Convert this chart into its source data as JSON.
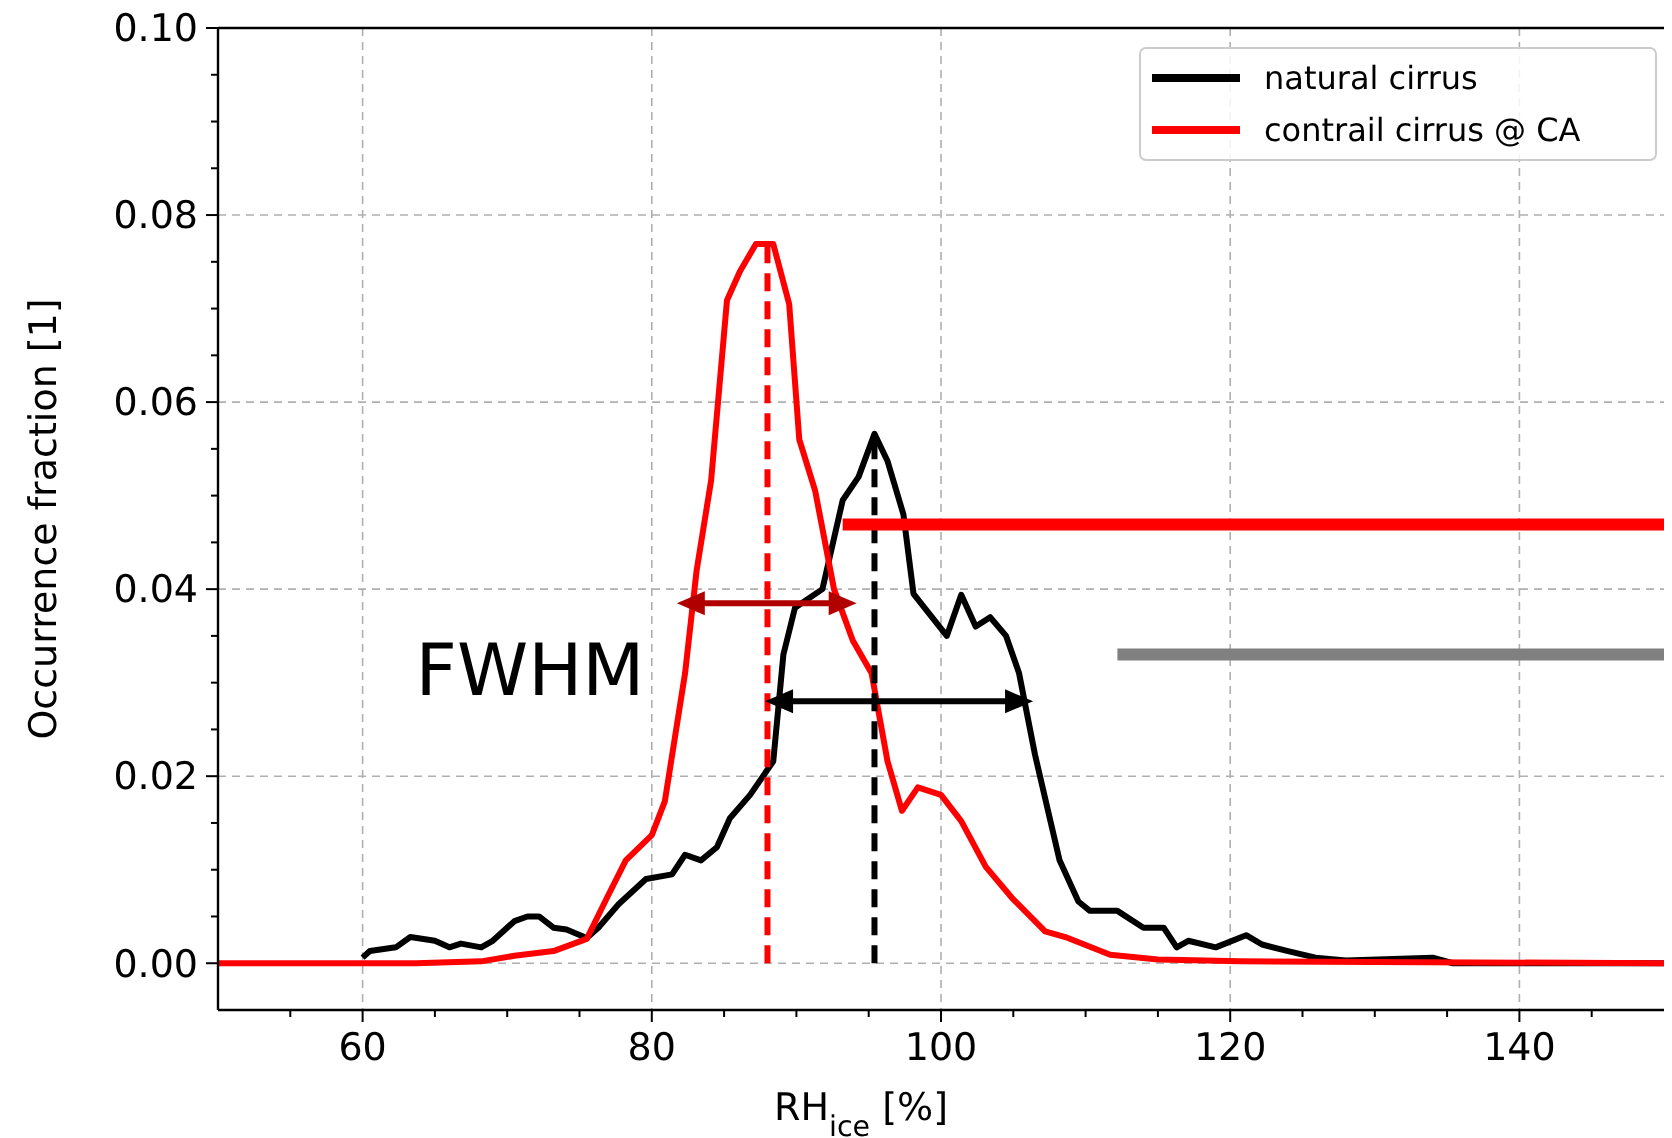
{
  "chart_data": {
    "type": "line",
    "xlabel": "RH$_{ice}$ [%]",
    "ylabel": "Occurrence fraction [1]",
    "xlim": [
      50,
      150
    ],
    "ylim": [
      -0.005,
      0.1
    ],
    "xticks": [
      {
        "value": 55,
        "label": null
      },
      60,
      {
        "value": 65,
        "label": null
      },
      {
        "value": 70,
        "label": null
      },
      {
        "value": 75,
        "label": null
      },
      80,
      {
        "value": 85,
        "label": null
      },
      {
        "value": 90,
        "label": null
      },
      {
        "value": 95,
        "label": null
      },
      100,
      {
        "value": 105,
        "label": null
      },
      {
        "value": 110,
        "label": null
      },
      {
        "value": 115,
        "label": null
      },
      120,
      {
        "value": 125,
        "label": null
      },
      {
        "value": 130,
        "label": null
      },
      {
        "value": 135,
        "label": null
      },
      140,
      {
        "value": 145,
        "label": null
      }
    ],
    "yticks": [
      "0.00",
      {
        "value": 0.005,
        "label": null
      },
      {
        "value": 0.01,
        "label": null
      },
      {
        "value": 0.015,
        "label": null
      },
      {
        "value": 0.02,
        "label": "0.02"
      },
      {
        "value": 0.025,
        "label": null
      },
      {
        "value": 0.03,
        "label": null
      },
      {
        "value": 0.035,
        "label": null
      },
      {
        "value": 0.04,
        "label": "0.04"
      },
      {
        "value": 0.045,
        "label": null
      },
      {
        "value": 0.05,
        "label": null
      },
      {
        "value": 0.055,
        "label": null
      },
      {
        "value": 0.06,
        "label": "0.06"
      },
      {
        "value": 0.065,
        "label": null
      },
      {
        "value": 0.07,
        "label": null
      },
      {
        "value": 0.075,
        "label": null
      },
      {
        "value": 0.08,
        "label": "0.08"
      },
      {
        "value": 0.085,
        "label": null
      },
      {
        "value": 0.09,
        "label": null
      },
      {
        "value": 0.095,
        "label": null
      },
      {
        "value": 0.1,
        "label": "0.10"
      }
    ],
    "grid": true,
    "legend": "top right",
    "line_style": "solid",
    "annotations": [
      "FWHM"
    ],
    "series": [
      {
        "name": "natural cirrus",
        "color": "#000000",
        "x": [
          60,
          60.5,
          62.3,
          63.3,
          65,
          66,
          66.8,
          68.2,
          69,
          70.5,
          71.4,
          72.2,
          73.2,
          74.1,
          75.5,
          76.3,
          77.7,
          79.6,
          81.4,
          82.3,
          83.4,
          84.5,
          85.4,
          86.8,
          88.4,
          89.1,
          89.9,
          91.8,
          93.2,
          94.3,
          95.4,
          96.3,
          97.4,
          98.1,
          100.4,
          101.4,
          102.4,
          103.4,
          104.5,
          105.4,
          106.5,
          108.2,
          109.5,
          110.3,
          112.2,
          114,
          115.4,
          116.3,
          117.1,
          119,
          121.1,
          122.2,
          124,
          125.9,
          128,
          134,
          135.4,
          150
        ],
        "values": [
          0.0006,
          0.0013,
          0.0017,
          0.0028,
          0.0024,
          0.0017,
          0.0021,
          0.0017,
          0.0024,
          0.0045,
          0.005,
          0.005,
          0.0038,
          0.0036,
          0.0027,
          0.0038,
          0.0063,
          0.009,
          0.0095,
          0.0116,
          0.011,
          0.0124,
          0.0155,
          0.018,
          0.0216,
          0.033,
          0.038,
          0.04,
          0.0495,
          0.052,
          0.0566,
          0.0537,
          0.048,
          0.0395,
          0.035,
          0.0394,
          0.036,
          0.037,
          0.035,
          0.031,
          0.0223,
          0.011,
          0.0066,
          0.0056,
          0.0056,
          0.0038,
          0.0038,
          0.0017,
          0.0024,
          0.0017,
          0.003,
          0.002,
          0.0013,
          0.0006,
          0.0003,
          0.0006,
          0,
          0
        ]
      },
      {
        "name": "contrail cirrus @ CA",
        "color": "#ff0000",
        "x": [
          50,
          63.7,
          68.2,
          70.5,
          73.2,
          75.5,
          76.9,
          78.2,
          80,
          80.9,
          82.3,
          83.1,
          84.1,
          85.2,
          86.1,
          87.2,
          88.4,
          89.5,
          90.2,
          91.3,
          92.6,
          93.9,
          95.2,
          96.3,
          97.3,
          98.4,
          100,
          101.4,
          103.1,
          104.9,
          107.2,
          108.6,
          111.7,
          115,
          120.7,
          150
        ],
        "values": [
          0,
          0,
          0.0002,
          0.0008,
          0.0013,
          0.0026,
          0.007,
          0.011,
          0.0137,
          0.0173,
          0.031,
          0.042,
          0.0516,
          0.0709,
          0.074,
          0.0769,
          0.0769,
          0.0705,
          0.056,
          0.0505,
          0.04,
          0.0345,
          0.031,
          0.0216,
          0.0163,
          0.0188,
          0.018,
          0.0152,
          0.0103,
          0.007,
          0.0034,
          0.0028,
          0.0009,
          0.0004,
          0.0002,
          0
        ]
      },
      {
        "color": "#ff0000",
        "x": [
          88,
          88
        ],
        "values": [
          0,
          0.0769
        ],
        "line_style": "dashed"
      },
      {
        "color": "#000000",
        "x": [
          95.4,
          95.4
        ],
        "values": [
          0,
          0.0566
        ],
        "line_style": "dashed"
      },
      {
        "color": "#b00000",
        "x": [
          82.7,
          93.2
        ],
        "values": [
          0.0385,
          0.0385
        ],
        "marker": "triangle"
      },
      {
        "color": "#000000",
        "x": [
          88.8,
          105.4
        ],
        "values": [
          0.028,
          0.028
        ],
        "marker": "triangle"
      },
      {
        "color": "#ff0000",
        "x": [
          93.2,
          150
        ],
        "values": [
          0.0469,
          0.0469
        ]
      },
      {
        "color": "#808080",
        "x": [
          112.2,
          150
        ],
        "values": [
          0.033,
          0.033
        ]
      }
    ]
  }
}
